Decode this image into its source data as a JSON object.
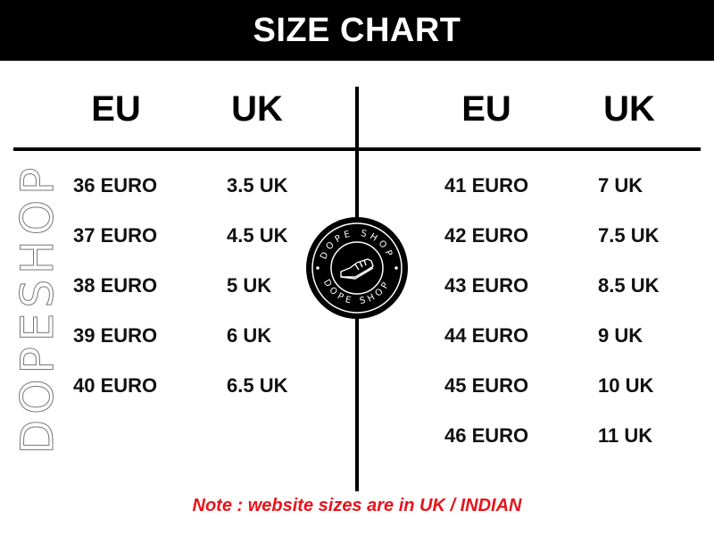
{
  "title": "SIZE CHART",
  "watermark": "DOPESHOP",
  "logo_text": "DOPE SHOP",
  "headers": {
    "left_eu": "EU",
    "left_uk": "UK",
    "right_eu": "EU",
    "right_uk": "UK"
  },
  "left_rows": [
    {
      "eu": "36 EURO",
      "uk": "3.5 UK"
    },
    {
      "eu": "37 EURO",
      "uk": "4.5 UK"
    },
    {
      "eu": "38 EURO",
      "uk": "5 UK"
    },
    {
      "eu": "39 EURO",
      "uk": "6 UK"
    },
    {
      "eu": "40 EURO",
      "uk": "6.5 UK"
    }
  ],
  "right_rows": [
    {
      "eu": "41 EURO",
      "uk": "7 UK"
    },
    {
      "eu": "42 EURO",
      "uk": "7.5 UK"
    },
    {
      "eu": "43 EURO",
      "uk": "8.5 UK"
    },
    {
      "eu": "44 EURO",
      "uk": "9 UK"
    },
    {
      "eu": "45 EURO",
      "uk": "10 UK"
    },
    {
      "eu": "46 EURO",
      "uk": "11 UK"
    }
  ],
  "note": "Note : website sizes are in UK / INDIAN",
  "colors": {
    "header_bg": "#000000",
    "note": "#e8141b"
  }
}
